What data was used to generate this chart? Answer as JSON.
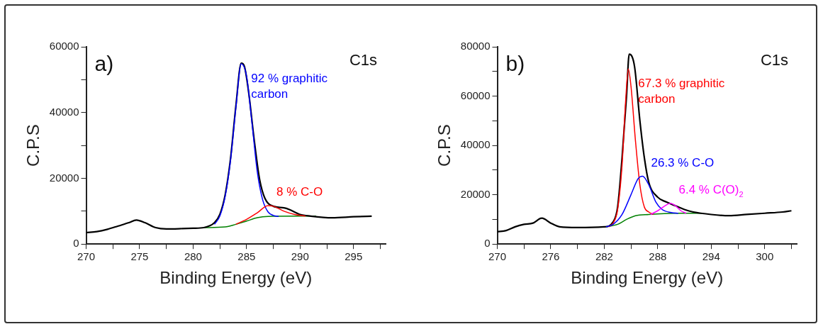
{
  "chart_data": [
    {
      "type": "line",
      "title": "a)",
      "xlabel": "Binding Energy (eV)",
      "ylabel": "C.P.S",
      "annotations": [
        "C1s"
      ],
      "xlim": [
        270,
        298
      ],
      "xticks": [
        270,
        {
          "value": 272.5,
          "label": null
        },
        275,
        {
          "value": 277.5,
          "label": null
        },
        280,
        {
          "value": 282.5,
          "label": null
        },
        285,
        {
          "value": 287.5,
          "label": null
        },
        290,
        {
          "value": 292.5,
          "label": null
        },
        295,
        {
          "value": 297.5,
          "label": null
        }
      ],
      "ylim": [
        0,
        60000
      ],
      "yticks": [
        0,
        {
          "value": 10000,
          "label": null
        },
        20000,
        {
          "value": 30000,
          "label": null
        },
        40000,
        {
          "value": 50000,
          "label": null
        },
        60000
      ],
      "grid": false,
      "legend": false,
      "marker": "none",
      "line_style": "solid",
      "series": [
        {
          "color": "#008000",
          "x": [
            281,
            283,
            284,
            285,
            286,
            287,
            290,
            291.5
          ],
          "values": [
            5000,
            5200,
            6000,
            7000,
            8000,
            8400,
            8500,
            8500
          ]
        },
        {
          "color": "#000000",
          "x": [
            270,
            271,
            272,
            273,
            274,
            274.7,
            275.5,
            276.5,
            277.5,
            279,
            280,
            281,
            282,
            282.5,
            283,
            283.5,
            284,
            284.5,
            284.8,
            285.2,
            285.7,
            286.2,
            286.7,
            287.5,
            288.5,
            289,
            290,
            291,
            293,
            295,
            296.7
          ],
          "values": [
            3500,
            3800,
            4500,
            5500,
            6500,
            7300,
            6500,
            5000,
            4600,
            4700,
            4800,
            5000,
            6500,
            9000,
            15000,
            26000,
            42000,
            55000,
            54000,
            46000,
            32000,
            20000,
            14000,
            11500,
            11000,
            10500,
            9000,
            8500,
            8000,
            8300,
            8500
          ]
        },
        {
          "name": "92 % graphitic carbon",
          "color": "#0000ff",
          "x": [
            282,
            282.5,
            283,
            283.5,
            284,
            284.5,
            285,
            285.5,
            286,
            286.5,
            287,
            287.5,
            288
          ],
          "values": [
            6000,
            8500,
            14500,
            25500,
            41500,
            54800,
            51000,
            37000,
            22000,
            13500,
            9800,
            8700,
            8400
          ]
        },
        {
          "name": "8 % C-O",
          "color": "#ff0000",
          "x": [
            284,
            285,
            286,
            287,
            287.5,
            288.5,
            289.5,
            290.5
          ],
          "values": [
            6000,
            7500,
            9500,
            11700,
            11500,
            10000,
            9000,
            8500
          ]
        }
      ]
    },
    {
      "type": "line",
      "title": "b)",
      "xlabel": "Binding Energy (eV)",
      "ylabel": "C.P.S",
      "annotations": [
        "C1s"
      ],
      "xlim": [
        270,
        303.6
      ],
      "xticks": [
        270,
        {
          "value": 273,
          "label": null
        },
        276,
        {
          "value": 279,
          "label": null
        },
        282,
        {
          "value": 285,
          "label": null
        },
        288,
        {
          "value": 291,
          "label": null
        },
        294,
        {
          "value": 297,
          "label": null
        },
        300,
        {
          "value": 303,
          "label": null
        }
      ],
      "ylim": [
        0,
        80000
      ],
      "yticks": [
        0,
        {
          "value": 10000,
          "label": null
        },
        20000,
        {
          "value": 30000,
          "label": null
        },
        40000,
        {
          "value": 50000,
          "label": null
        },
        60000,
        {
          "value": 70000,
          "label": null
        },
        80000
      ],
      "grid": false,
      "legend": false,
      "marker": "none",
      "line_style": "solid",
      "series": [
        {
          "color": "#008000",
          "x": [
            282.2,
            283.5,
            284.5,
            285.5,
            287,
            290,
            293
          ],
          "values": [
            7000,
            8000,
            10000,
            11500,
            12000,
            12500,
            12500
          ]
        },
        {
          "color": "#000000",
          "x": [
            270,
            271,
            272,
            273,
            274,
            275,
            276,
            277,
            279,
            282,
            283,
            283.5,
            284,
            284.5,
            284.8,
            285.4,
            286,
            286.5,
            287,
            288,
            289,
            290,
            291,
            292,
            294,
            296,
            298,
            300,
            302,
            303
          ],
          "values": [
            5000,
            5500,
            7000,
            8000,
            8500,
            10500,
            8500,
            7000,
            6700,
            7000,
            9000,
            15000,
            35000,
            60000,
            77000,
            72000,
            50000,
            35000,
            25000,
            19000,
            17000,
            15500,
            14000,
            13000,
            12000,
            11500,
            12000,
            12500,
            13000,
            13500
          ]
        },
        {
          "name": "67.3 % graphitic carbon",
          "color": "#ff0000",
          "x": [
            282.5,
            283,
            283.5,
            284,
            284.4,
            284.7,
            285,
            285.5,
            286,
            286.5,
            287,
            287.5
          ],
          "values": [
            7000,
            8500,
            14000,
            32000,
            58000,
            71000,
            64000,
            42000,
            24000,
            15000,
            13000,
            12000
          ]
        },
        {
          "name": "26.3 % C-O",
          "color": "#0000ff",
          "x": [
            282.2,
            283,
            284,
            285,
            285.8,
            286.3,
            287,
            287.8,
            288.5,
            289.5,
            290.3
          ],
          "values": [
            7000,
            8000,
            12000,
            20000,
            26500,
            27500,
            24000,
            17000,
            14000,
            12800,
            12500
          ]
        },
        {
          "name": "6.4 % C(O)$_{2}$",
          "color": "#ff00ff",
          "x": [
            287.2,
            288,
            288.8,
            289.4,
            290,
            290.6,
            291.2
          ],
          "values": [
            12000,
            13500,
            15500,
            16500,
            15500,
            13500,
            12500
          ]
        }
      ]
    }
  ]
}
